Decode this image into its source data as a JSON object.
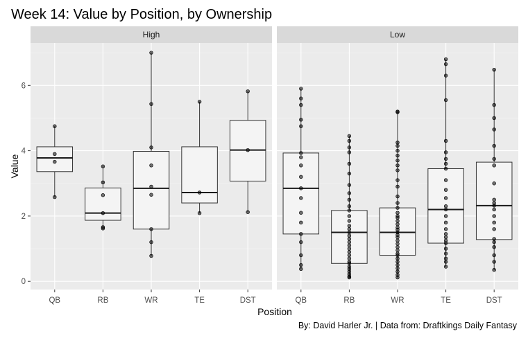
{
  "chart_data": {
    "type": "boxplot",
    "title": "Week 14: Value by Position, by Ownership",
    "xlabel": "Position",
    "ylabel": "Value",
    "caption": "By: David Harler Jr. | Data from: Draftkings Daily Fantasy",
    "categories": [
      "QB",
      "RB",
      "WR",
      "TE",
      "DST"
    ],
    "ylim": [
      -0.25,
      7.3
    ],
    "yticks": [
      "0",
      "2",
      "4",
      "6"
    ],
    "grid": true,
    "facets": [
      {
        "name": "High",
        "boxes": [
          {
            "category": "QB",
            "min": 2.58,
            "q1": 3.36,
            "median": 3.78,
            "q3": 4.12,
            "max": 4.75
          },
          {
            "category": "RB",
            "min": 1.62,
            "q1": 1.87,
            "median": 2.09,
            "q3": 2.86,
            "max": 3.52
          },
          {
            "category": "WR",
            "min": 0.78,
            "q1": 1.6,
            "median": 2.85,
            "q3": 3.98,
            "max": 7.0
          },
          {
            "category": "TE",
            "min": 2.09,
            "q1": 2.4,
            "median": 2.72,
            "q3": 4.12,
            "max": 5.5
          },
          {
            "category": "DST",
            "min": 2.12,
            "q1": 3.07,
            "median": 4.02,
            "q3": 4.93,
            "max": 5.82
          }
        ],
        "points": {
          "QB": [
            4.75,
            3.9,
            3.66,
            2.58
          ],
          "RB": [
            3.52,
            3.03,
            2.64,
            2.09,
            1.66,
            1.62
          ],
          "WR": [
            7.0,
            5.43,
            4.1,
            3.55,
            2.9,
            2.65,
            1.6,
            1.2,
            0.78
          ],
          "TE": [
            5.5,
            2.72,
            2.09
          ],
          "DST": [
            5.82,
            4.02,
            2.12
          ]
        }
      },
      {
        "name": "Low",
        "boxes": [
          {
            "category": "QB",
            "min": 0.38,
            "q1": 1.45,
            "median": 2.85,
            "q3": 3.93,
            "max": 5.9
          },
          {
            "category": "RB",
            "min": 0.12,
            "q1": 0.55,
            "median": 1.5,
            "q3": 2.17,
            "max": 4.45
          },
          {
            "category": "WR",
            "min": 0.12,
            "q1": 0.8,
            "median": 1.5,
            "q3": 2.25,
            "max": 5.2
          },
          {
            "category": "TE",
            "min": 0.45,
            "q1": 1.17,
            "median": 2.2,
            "q3": 3.45,
            "max": 6.8
          },
          {
            "category": "DST",
            "min": 0.35,
            "q1": 1.28,
            "median": 2.32,
            "q3": 3.65,
            "max": 6.48
          }
        ],
        "points": {
          "QB": [
            5.9,
            5.6,
            5.4,
            4.95,
            4.75,
            3.93,
            3.8,
            3.55,
            3.2,
            2.85,
            2.55,
            2.1,
            1.8,
            1.45,
            1.2,
            0.8,
            0.5,
            0.38
          ],
          "RB": [
            4.45,
            4.3,
            4.1,
            3.95,
            3.6,
            3.3,
            2.95,
            2.7,
            2.5,
            2.3,
            2.17,
            2.0,
            1.85,
            1.7,
            1.6,
            1.5,
            1.4,
            1.3,
            1.2,
            1.1,
            1.0,
            0.9,
            0.8,
            0.7,
            0.6,
            0.55,
            0.45,
            0.38,
            0.3,
            0.22,
            0.15,
            0.12
          ],
          "WR": [
            5.2,
            5.18,
            4.25,
            4.15,
            4.0,
            3.85,
            3.7,
            3.55,
            3.4,
            3.1,
            2.9,
            2.6,
            2.4,
            2.25,
            2.1,
            2.0,
            1.95,
            1.85,
            1.75,
            1.65,
            1.58,
            1.5,
            1.42,
            1.35,
            1.25,
            1.15,
            1.05,
            0.95,
            0.85,
            0.8,
            0.7,
            0.6,
            0.5,
            0.4,
            0.3,
            0.2,
            0.12
          ],
          "TE": [
            6.8,
            6.65,
            6.3,
            5.55,
            4.3,
            3.95,
            3.75,
            3.6,
            3.45,
            3.1,
            2.8,
            2.55,
            2.3,
            2.2,
            2.0,
            1.8,
            1.6,
            1.45,
            1.35,
            1.25,
            1.17,
            1.0,
            0.85,
            0.7,
            0.6,
            0.45
          ],
          "DST": [
            6.48,
            5.4,
            5.0,
            4.65,
            4.15,
            3.75,
            3.55,
            3.0,
            2.5,
            2.4,
            2.32,
            2.2,
            2.0,
            1.8,
            1.6,
            1.3,
            1.2,
            1.05,
            0.8,
            0.6,
            0.35
          ]
        }
      }
    ]
  }
}
